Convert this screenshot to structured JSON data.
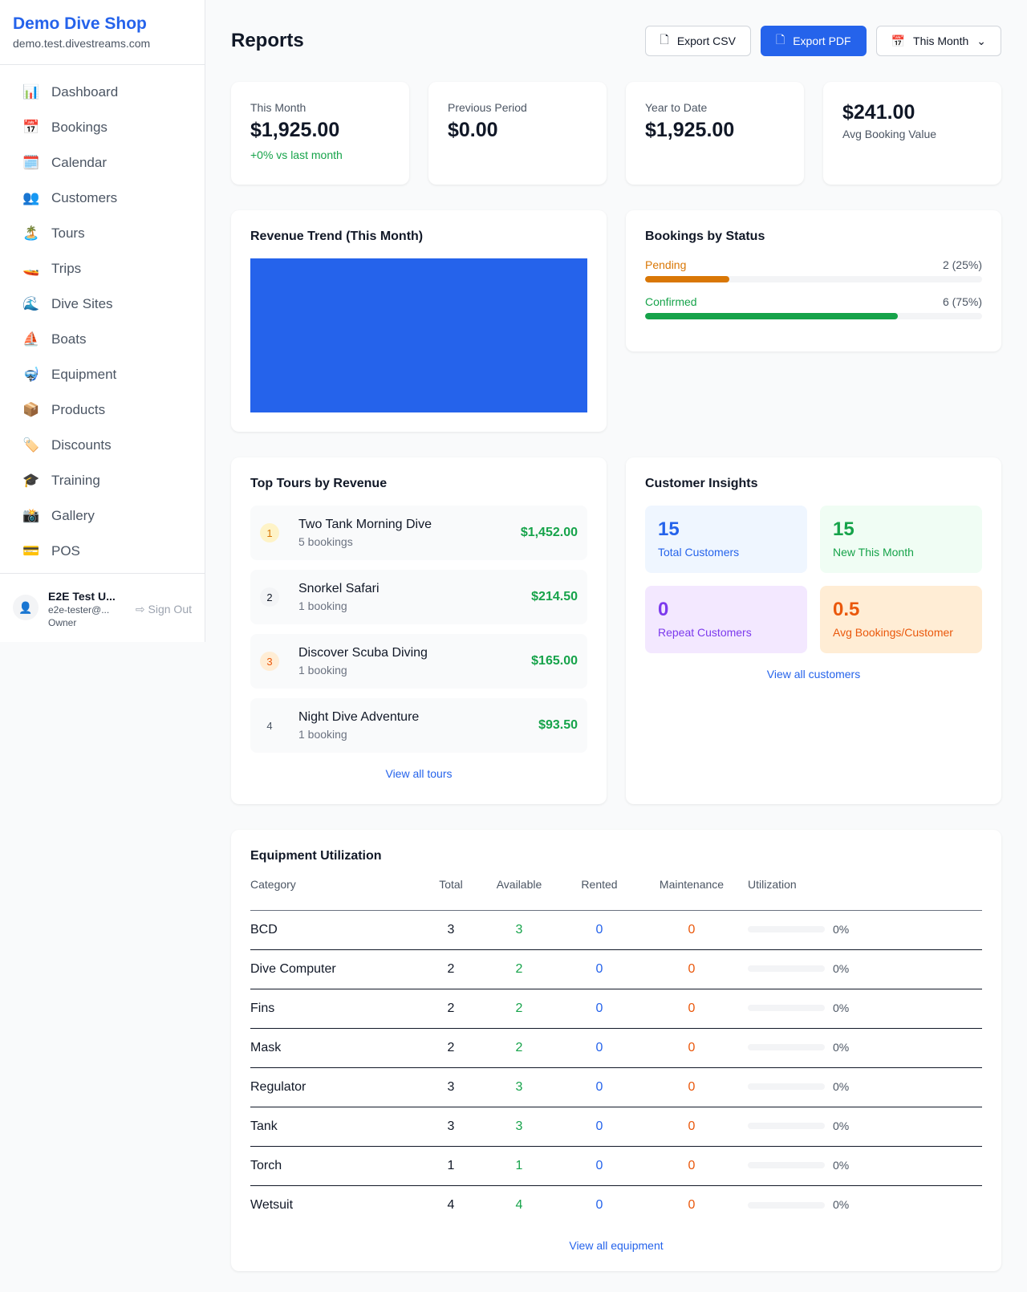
{
  "sidebar": {
    "brand": "Demo Dive Shop",
    "domain": "demo.test.divestreams.com",
    "items": [
      {
        "icon": "📊",
        "label": "Dashboard"
      },
      {
        "icon": "📅",
        "label": "Bookings"
      },
      {
        "icon": "🗓️",
        "label": "Calendar"
      },
      {
        "icon": "👥",
        "label": "Customers"
      },
      {
        "icon": "🏝️",
        "label": "Tours"
      },
      {
        "icon": "🚤",
        "label": "Trips"
      },
      {
        "icon": "🌊",
        "label": "Dive Sites"
      },
      {
        "icon": "⛵",
        "label": "Boats"
      },
      {
        "icon": "🤿",
        "label": "Equipment"
      },
      {
        "icon": "📦",
        "label": "Products"
      },
      {
        "icon": "🏷️",
        "label": "Discounts"
      },
      {
        "icon": "🎓",
        "label": "Training"
      },
      {
        "icon": "📸",
        "label": "Gallery"
      },
      {
        "icon": "💳",
        "label": "POS"
      }
    ],
    "user": {
      "name": "E2E Test U...",
      "email": "e2e-tester@...",
      "role": "Owner",
      "sign_out": "Sign Out"
    }
  },
  "header": {
    "title": "Reports",
    "export_csv": "Export CSV",
    "export_pdf": "Export PDF",
    "period": "This Month"
  },
  "stats": [
    {
      "label": "This Month",
      "value": "$1,925.00",
      "change": "+0% vs last month"
    },
    {
      "label": "Previous Period",
      "value": "$0.00"
    },
    {
      "label": "Year to Date",
      "value": "$1,925.00"
    },
    {
      "value": "$241.00",
      "label": "Avg Booking Value"
    }
  ],
  "revenue": {
    "title": "Revenue Trend (This Month)",
    "bar_color": "#2563eb"
  },
  "status": {
    "title": "Bookings by Status",
    "items": [
      {
        "label": "Pending",
        "count": "2 (25%)",
        "percent": 25,
        "color": "#d97706"
      },
      {
        "label": "Confirmed",
        "count": "6 (75%)",
        "percent": 75,
        "color": "#16a34a"
      }
    ]
  },
  "tours": {
    "title": "Top Tours by Revenue",
    "items": [
      {
        "rank": "1",
        "name": "Two Tank Morning Dive",
        "count": "5 bookings",
        "revenue": "$1,452.00"
      },
      {
        "rank": "2",
        "name": "Snorkel Safari",
        "count": "1 booking",
        "revenue": "$214.50"
      },
      {
        "rank": "3",
        "name": "Discover Scuba Diving",
        "count": "1 booking",
        "revenue": "$165.00"
      },
      {
        "rank": "4",
        "name": "Night Dive Adventure",
        "count": "1 booking",
        "revenue": "$93.50"
      }
    ],
    "view_all": "View all tours"
  },
  "insights": {
    "title": "Customer Insights",
    "items": [
      {
        "value": "15",
        "label": "Total Customers"
      },
      {
        "value": "15",
        "label": "New This Month"
      },
      {
        "value": "0",
        "label": "Repeat Customers"
      },
      {
        "value": "0.5",
        "label": "Avg Bookings/Customer"
      }
    ],
    "view_all": "View all customers"
  },
  "equipment": {
    "title": "Equipment Utilization",
    "columns": [
      "Category",
      "Total",
      "Available",
      "Rented",
      "Maintenance",
      "Utilization"
    ],
    "rows": [
      [
        "BCD",
        "3",
        "3",
        "0",
        "0",
        "0%"
      ],
      [
        "Dive Computer",
        "2",
        "2",
        "0",
        "0",
        "0%"
      ],
      [
        "Fins",
        "2",
        "2",
        "0",
        "0",
        "0%"
      ],
      [
        "Mask",
        "2",
        "2",
        "0",
        "0",
        "0%"
      ],
      [
        "Regulator",
        "3",
        "3",
        "0",
        "0",
        "0%"
      ],
      [
        "Tank",
        "3",
        "3",
        "0",
        "0",
        "0%"
      ],
      [
        "Torch",
        "1",
        "1",
        "0",
        "0",
        "0%"
      ],
      [
        "Wetsuit",
        "4",
        "4",
        "0",
        "0",
        "0%"
      ]
    ],
    "view_all": "View all equipment"
  }
}
